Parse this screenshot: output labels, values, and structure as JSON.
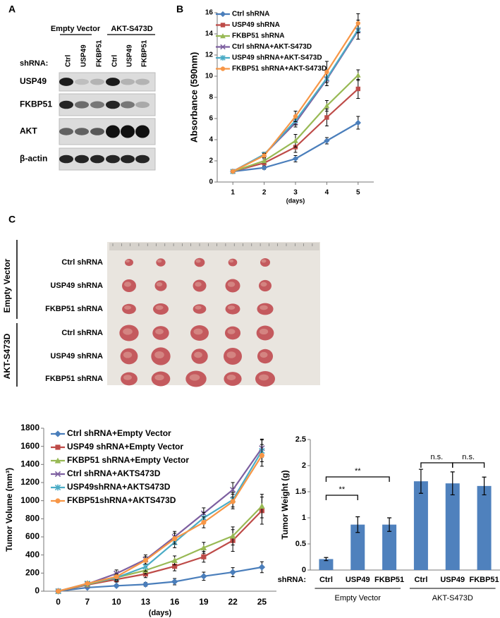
{
  "panel_labels": [
    "A",
    "B",
    "C"
  ],
  "blot": {
    "groups": [
      "Empty Vector",
      "AKT-S473D"
    ],
    "shrna_label": "shRNA:",
    "lanes": [
      "Ctrl",
      "USP49",
      "FKBP51",
      "Ctrl",
      "USP49",
      "FKBP51"
    ],
    "rows": [
      "USP49",
      "FKBP51",
      "AKT",
      "β-actin"
    ]
  },
  "photo": {
    "groups": [
      "Empty Vector",
      "AKT-S473D"
    ],
    "rows": [
      "Ctrl shRNA",
      "USP49 shRNA",
      "FKBP51 shRNA",
      "Ctrl shRNA",
      "USP49 shRNA",
      "FKBP51 shRNA"
    ]
  },
  "chart_data": [
    {
      "type": "line",
      "xlabel": "(days)",
      "ylabel": "Absorbance (590nm)",
      "x": [
        1,
        2,
        3,
        4,
        5
      ],
      "xlim": [
        0.5,
        5.5
      ],
      "xticks": [
        1,
        2,
        3,
        4,
        5
      ],
      "ylim": [
        0,
        16
      ],
      "yticks": [
        0,
        2,
        4,
        6,
        8,
        10,
        12,
        14,
        16
      ],
      "series": [
        {
          "name": "Ctrl shRNA",
          "color": "#4a7ebb",
          "marker": "diamond",
          "values": [
            1,
            1.35,
            2.2,
            3.9,
            5.6
          ],
          "errors": [
            0.1,
            0.15,
            0.3,
            0.3,
            0.6
          ]
        },
        {
          "name": "USP49 shRNA",
          "color": "#be4b48",
          "marker": "square",
          "values": [
            1,
            1.8,
            3.3,
            6.1,
            8.8
          ],
          "errors": [
            0.1,
            0.2,
            0.5,
            0.8,
            0.9
          ]
        },
        {
          "name": "FKBP51 shRNA",
          "color": "#98b954",
          "marker": "triangle",
          "values": [
            1,
            2.0,
            3.9,
            7.2,
            10.1
          ],
          "errors": [
            0.1,
            0.2,
            0.6,
            0.5,
            0.5
          ]
        },
        {
          "name": "Ctrl shRNA+AKT-S473D",
          "color": "#7d5fa0",
          "marker": "x",
          "values": [
            1,
            2.6,
            5.6,
            9.7,
            14.3
          ],
          "errors": [
            0.1,
            0.2,
            0.4,
            0.6,
            0.8
          ]
        },
        {
          "name": "USP49 shRNA+AKT-S473D",
          "color": "#4bacc6",
          "marker": "star",
          "values": [
            1,
            2.6,
            5.8,
            9.8,
            14.4
          ],
          "errors": [
            0.1,
            0.2,
            0.4,
            0.7,
            0.9
          ]
        },
        {
          "name": "FKBP51 shRNA+AKT-S473D",
          "color": "#f79646",
          "marker": "circle",
          "values": [
            1,
            2.5,
            6.2,
            10.4,
            15.0
          ],
          "errors": [
            0.1,
            0.2,
            0.5,
            1.0,
            0.9
          ]
        }
      ]
    },
    {
      "type": "line",
      "xlabel": "(days)",
      "ylabel": "Tumor Volume (mm³)",
      "categories": [
        "0",
        "7",
        "10",
        "13",
        "16",
        "19",
        "22",
        "25"
      ],
      "ylim": [
        0,
        1800
      ],
      "yticks": [
        0,
        200,
        400,
        600,
        800,
        1000,
        1200,
        1400,
        1600,
        1800
      ],
      "series": [
        {
          "name": "Ctrl shRNA+Empty Vector",
          "color": "#4a7ebb",
          "marker": "diamond",
          "values": [
            0,
            40,
            60,
            75,
            105,
            165,
            210,
            265
          ],
          "errors": [
            5,
            10,
            15,
            20,
            35,
            45,
            50,
            60
          ]
        },
        {
          "name": "USP49 shRNA+Empty Vector",
          "color": "#be4b48",
          "marker": "square",
          "values": [
            0,
            70,
            130,
            190,
            275,
            380,
            560,
            890
          ],
          "errors": [
            5,
            15,
            30,
            40,
            50,
            60,
            120,
            150
          ]
        },
        {
          "name": "FKBP51 shRNA+Empty Vector",
          "color": "#98b954",
          "marker": "triangle",
          "values": [
            0,
            75,
            150,
            230,
            340,
            480,
            610,
            940
          ],
          "errors": [
            5,
            15,
            30,
            40,
            50,
            60,
            100,
            130
          ]
        },
        {
          "name": "Ctrl shRNA+AKTS473D",
          "color": "#7d5fa0",
          "marker": "x",
          "values": [
            0,
            80,
            195,
            350,
            600,
            860,
            1120,
            1580
          ],
          "errors": [
            5,
            20,
            40,
            50,
            60,
            60,
            80,
            100
          ]
        },
        {
          "name": "USP49shRNA+AKTS473D",
          "color": "#4bacc6",
          "marker": "star",
          "values": [
            0,
            85,
            150,
            270,
            540,
            810,
            1010,
            1550
          ],
          "errors": [
            5,
            20,
            40,
            50,
            60,
            60,
            80,
            120
          ]
        },
        {
          "name": "FKBP51shRNA+AKTS473D",
          "color": "#f79646",
          "marker": "circle",
          "values": [
            0,
            85,
            160,
            340,
            580,
            760,
            990,
            1500
          ],
          "errors": [
            5,
            20,
            30,
            40,
            60,
            60,
            80,
            120
          ]
        }
      ]
    },
    {
      "type": "bar",
      "ylabel": "Tumor Weight (g)",
      "category_title": "shRNA:",
      "categories": [
        "Ctrl",
        "USP49",
        "FKBP51",
        "Ctrl",
        "USP49",
        "FKBP51"
      ],
      "groups": [
        "Empty Vector",
        "AKT-S473D"
      ],
      "values": [
        0.21,
        0.87,
        0.87,
        1.7,
        1.66,
        1.61
      ],
      "errors": [
        0.03,
        0.15,
        0.13,
        0.23,
        0.22,
        0.17
      ],
      "color": "#4f81bd",
      "ylim": [
        0,
        2.5
      ],
      "yticks": [
        0,
        0.5,
        1,
        1.5,
        2,
        2.5
      ],
      "annotations": [
        "**",
        "**",
        "n.s.",
        "n.s."
      ]
    }
  ]
}
